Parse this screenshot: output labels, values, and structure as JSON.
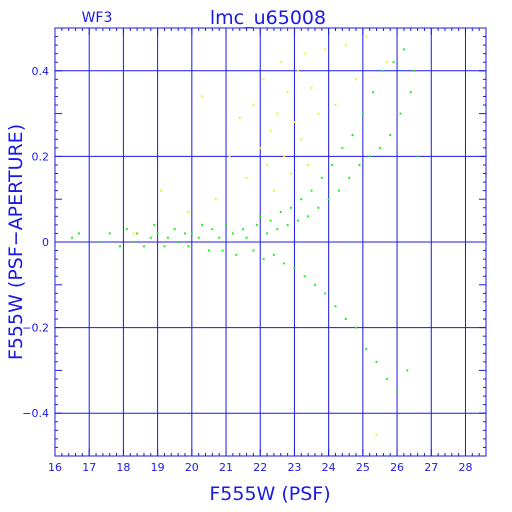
{
  "chart_data": {
    "type": "scatter",
    "title": "lmc_u65008",
    "corner_label": "WF3",
    "xlabel": "F555W (PSF)",
    "ylabel": "F555W (PSF−APERTURE)",
    "xlim": [
      16,
      28.6
    ],
    "ylim": [
      -0.5,
      0.5
    ],
    "x_ticks": [
      16,
      17,
      18,
      19,
      20,
      21,
      22,
      23,
      24,
      25,
      26,
      27,
      28
    ],
    "y_ticks": [
      -0.4,
      -0.2,
      0,
      0.2,
      0.4
    ],
    "y_tick_labels": [
      "−0.4",
      "−0.2",
      "0",
      "0.2",
      "0.4"
    ],
    "grid": true,
    "colors": {
      "axes": "#1a1ae6",
      "grid": "#1a1ae6",
      "main_stars": "#22ee22",
      "flagged_stars": "#f0f020"
    },
    "series": [
      {
        "color": "#22ee22",
        "x": [
          16.5,
          16.7,
          17.3,
          17.6,
          17.9,
          18.1,
          18.3,
          18.4,
          18.6,
          18.8,
          18.9,
          19.0,
          19.2,
          19.3,
          19.5,
          19.6,
          19.8,
          19.9,
          20.0,
          20.2,
          20.3,
          20.5,
          20.6,
          20.8,
          20.9,
          21.0,
          21.2,
          21.3,
          21.5,
          21.6,
          21.8,
          21.9,
          22.0,
          22.1,
          22.2,
          22.3,
          22.4,
          22.5,
          22.6,
          22.7,
          22.8,
          22.9,
          23.0,
          23.1,
          23.2,
          23.3,
          23.4,
          23.5,
          23.6,
          23.7,
          23.8,
          23.9,
          24.0,
          24.1,
          24.2,
          24.3,
          24.4,
          24.5,
          24.6,
          24.7,
          24.8,
          24.9,
          25.0,
          25.1,
          25.2,
          25.3,
          25.4,
          25.5,
          25.6,
          25.7,
          25.8,
          25.9,
          26.0,
          26.1,
          26.2,
          26.3,
          26.4,
          26.5,
          26.6
        ],
        "y": [
          0.01,
          0.02,
          0.0,
          0.02,
          -0.01,
          0.03,
          0.0,
          0.02,
          -0.01,
          0.01,
          0.04,
          0.02,
          -0.01,
          0.01,
          0.03,
          0.0,
          0.02,
          -0.01,
          0.02,
          0.01,
          0.04,
          -0.02,
          0.03,
          0.01,
          -0.02,
          0.04,
          0.02,
          -0.03,
          0.03,
          0.01,
          -0.02,
          0.04,
          0.06,
          -0.04,
          0.02,
          0.05,
          -0.03,
          0.03,
          0.07,
          -0.05,
          0.04,
          0.08,
          -0.06,
          0.05,
          0.1,
          -0.08,
          0.06,
          0.12,
          -0.1,
          0.08,
          0.15,
          -0.12,
          0.1,
          0.18,
          -0.15,
          0.12,
          0.22,
          -0.18,
          0.15,
          0.25,
          -0.2,
          0.18,
          0.3,
          -0.25,
          0.2,
          0.35,
          -0.28,
          0.22,
          0.4,
          -0.32,
          0.25,
          0.42,
          -0.35,
          0.3,
          0.45,
          -0.3,
          0.35,
          0.4,
          0.2
        ]
      },
      {
        "color": "#f0f020",
        "x": [
          18.3,
          19.1,
          19.9,
          20.3,
          20.7,
          21.1,
          21.4,
          21.6,
          21.8,
          22.0,
          22.1,
          22.2,
          22.3,
          22.4,
          22.5,
          22.6,
          22.7,
          22.8,
          22.9,
          23.0,
          23.1,
          23.2,
          23.3,
          23.4,
          23.5,
          23.7,
          23.9,
          24.2,
          24.5,
          24.8,
          25.1,
          25.4,
          25.7
        ],
        "y": [
          0.02,
          0.12,
          0.07,
          0.34,
          0.1,
          0.2,
          0.29,
          0.15,
          0.32,
          0.22,
          0.38,
          0.18,
          0.26,
          0.12,
          0.3,
          0.42,
          0.2,
          0.35,
          0.16,
          0.28,
          0.4,
          0.24,
          0.44,
          0.18,
          0.36,
          0.3,
          0.45,
          0.32,
          0.46,
          0.38,
          0.48,
          -0.45,
          0.42
        ]
      }
    ]
  }
}
